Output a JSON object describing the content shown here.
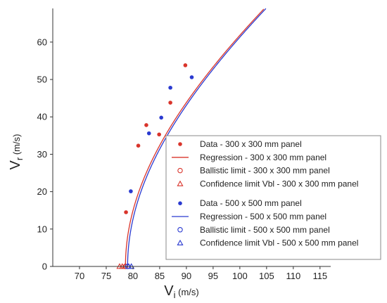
{
  "chart_data": {
    "type": "scatter",
    "x_axis": {
      "label_main": "V",
      "label_sub": "i",
      "label_unit": " (m/s)",
      "ticks": [
        70,
        75,
        80,
        85,
        90,
        95,
        100,
        105,
        110,
        115
      ],
      "range": [
        65,
        117
      ]
    },
    "y_axis": {
      "label_main": "V",
      "label_sub": "r",
      "label_unit": " (m/s)",
      "ticks": [
        0,
        10,
        20,
        30,
        40,
        50,
        60
      ],
      "range": [
        0,
        69
      ]
    },
    "grid": false,
    "legend_position": "bottom-right",
    "colors": {
      "red": "#d9342b",
      "blue": "#2a3ad0"
    },
    "series": [
      {
        "name": "Data - 300 x 300 mm panel",
        "kind": "points",
        "color": "#d9342b",
        "points": [
          [
            78.7,
            14.5
          ],
          [
            81.0,
            32.3
          ],
          [
            82.5,
            37.8
          ],
          [
            84.9,
            35.3
          ],
          [
            87.0,
            43.8
          ],
          [
            89.8,
            53.8
          ]
        ]
      },
      {
        "name": "Regression - 300 x 300 mm panel",
        "kind": "line",
        "color": "#d9342b",
        "curve": {
          "vbl": 78.6,
          "a": 1.0,
          "p": 2.0,
          "x_end": 105
        }
      },
      {
        "name": "Ballistic limit - 300 x 300 mm panel",
        "kind": "circle",
        "color": "#d9342b",
        "points": [
          [
            78.6,
            0
          ]
        ]
      },
      {
        "name": "Confidence limit Vbl - 300 x 300 mm panel",
        "kind": "triangle",
        "color": "#d9342b",
        "points": [
          [
            77.5,
            0
          ],
          [
            78.0,
            0
          ],
          [
            78.5,
            0
          ]
        ]
      },
      {
        "name": "Data - 500 x 500 mm panel",
        "kind": "points",
        "color": "#2a3ad0",
        "points": [
          [
            79.6,
            20.1
          ],
          [
            83.0,
            35.6
          ],
          [
            85.3,
            39.8
          ],
          [
            87.0,
            47.8
          ],
          [
            91.0,
            50.6
          ]
        ]
      },
      {
        "name": "Regression - 500 x 500 mm panel",
        "kind": "line",
        "color": "#2a3ad0",
        "curve": {
          "vbl": 79.0,
          "a": 1.0,
          "p": 2.0,
          "x_end": 105
        }
      },
      {
        "name": "Ballistic limit - 500 x 500 mm panel",
        "kind": "circle",
        "color": "#2a3ad0",
        "points": [
          [
            79.0,
            0
          ]
        ]
      },
      {
        "name": "Confidence limit Vbl - 500 x 500 mm panel",
        "kind": "triangle",
        "color": "#2a3ad0",
        "points": [
          [
            79.2,
            0
          ],
          [
            79.7,
            0
          ]
        ]
      }
    ]
  }
}
